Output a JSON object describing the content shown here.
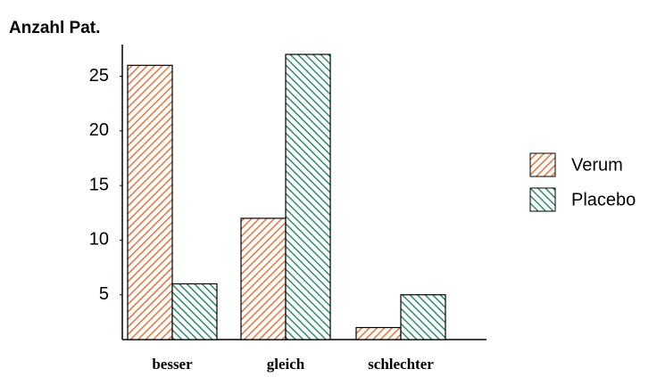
{
  "chart_data": {
    "type": "bar",
    "title": "Anzahl Pat.",
    "categories": [
      "besser",
      "gleich",
      "schlechter"
    ],
    "series": [
      {
        "name": "Verum",
        "color": "#e8743b",
        "values": [
          26,
          12,
          2
        ]
      },
      {
        "name": "Placebo",
        "color": "#2e8b6e",
        "values": [
          6,
          27,
          5
        ]
      }
    ],
    "ylim": [
      0.9,
      27.9
    ],
    "yticks": [
      5,
      10,
      15,
      20,
      25
    ],
    "grid": false,
    "legend": "right"
  }
}
